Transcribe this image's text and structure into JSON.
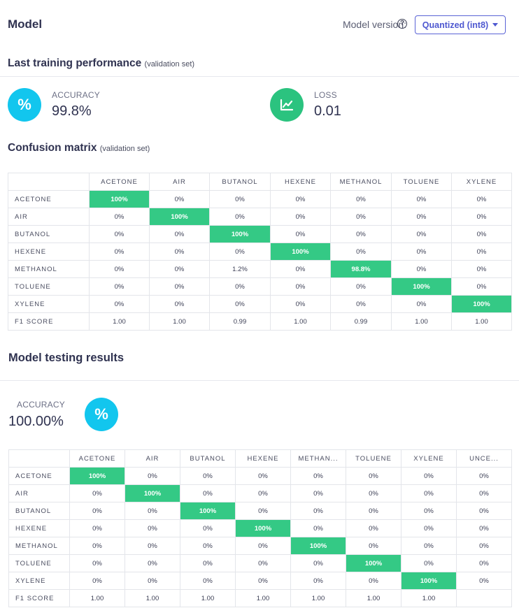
{
  "header": {
    "title": "Model",
    "version_label": "Model version:",
    "help_glyph": "?",
    "version_value": "Quantized (int8)"
  },
  "training": {
    "title": "Last training performance",
    "subtitle": "(validation set)",
    "accuracy": {
      "label": "ACCURACY",
      "value": "99.8%",
      "icon": "percent-icon",
      "icon_glyph": "%",
      "color": "#12c6ee"
    },
    "loss": {
      "label": "LOSS",
      "value": "0.01",
      "icon": "chart-line-icon",
      "color": "#2bc37f"
    },
    "confusion": {
      "title": "Confusion matrix",
      "subtitle": "(validation set)",
      "columns": [
        "ACETONE",
        "AIR",
        "BUTANOL",
        "HEXENE",
        "METHANOL",
        "TOLUENE",
        "XYLENE"
      ],
      "rows": [
        {
          "label": "ACETONE",
          "cells": [
            "100%",
            "0%",
            "0%",
            "0%",
            "0%",
            "0%",
            "0%"
          ]
        },
        {
          "label": "AIR",
          "cells": [
            "0%",
            "100%",
            "0%",
            "0%",
            "0%",
            "0%",
            "0%"
          ]
        },
        {
          "label": "BUTANOL",
          "cells": [
            "0%",
            "0%",
            "100%",
            "0%",
            "0%",
            "0%",
            "0%"
          ]
        },
        {
          "label": "HEXENE",
          "cells": [
            "0%",
            "0%",
            "0%",
            "100%",
            "0%",
            "0%",
            "0%"
          ]
        },
        {
          "label": "METHANOL",
          "cells": [
            "0%",
            "0%",
            "1.2%",
            "0%",
            "98.8%",
            "0%",
            "0%"
          ]
        },
        {
          "label": "TOLUENE",
          "cells": [
            "0%",
            "0%",
            "0%",
            "0%",
            "0%",
            "100%",
            "0%"
          ]
        },
        {
          "label": "XYLENE",
          "cells": [
            "0%",
            "0%",
            "0%",
            "0%",
            "0%",
            "0%",
            "100%"
          ]
        }
      ],
      "f1": {
        "label": "F1 SCORE",
        "cells": [
          "1.00",
          "1.00",
          "0.99",
          "1.00",
          "0.99",
          "1.00",
          "1.00"
        ]
      }
    }
  },
  "testing": {
    "title": "Model testing results",
    "accuracy": {
      "label": "ACCURACY",
      "value": "100.00%",
      "icon": "percent-icon",
      "icon_glyph": "%",
      "color": "#12c6ee"
    },
    "confusion": {
      "columns": [
        "ACETONE",
        "AIR",
        "BUTANOL",
        "HEXENE",
        "METHAN...",
        "TOLUENE",
        "XYLENE",
        "UNCE..."
      ],
      "rows": [
        {
          "label": "ACETONE",
          "cells": [
            "100%",
            "0%",
            "0%",
            "0%",
            "0%",
            "0%",
            "0%",
            "0%"
          ]
        },
        {
          "label": "AIR",
          "cells": [
            "0%",
            "100%",
            "0%",
            "0%",
            "0%",
            "0%",
            "0%",
            "0%"
          ]
        },
        {
          "label": "BUTANOL",
          "cells": [
            "0%",
            "0%",
            "100%",
            "0%",
            "0%",
            "0%",
            "0%",
            "0%"
          ]
        },
        {
          "label": "HEXENE",
          "cells": [
            "0%",
            "0%",
            "0%",
            "100%",
            "0%",
            "0%",
            "0%",
            "0%"
          ]
        },
        {
          "label": "METHANOL",
          "cells": [
            "0%",
            "0%",
            "0%",
            "0%",
            "100%",
            "0%",
            "0%",
            "0%"
          ]
        },
        {
          "label": "TOLUENE",
          "cells": [
            "0%",
            "0%",
            "0%",
            "0%",
            "0%",
            "100%",
            "0%",
            "0%"
          ]
        },
        {
          "label": "XYLENE",
          "cells": [
            "0%",
            "0%",
            "0%",
            "0%",
            "0%",
            "0%",
            "100%",
            "0%"
          ]
        }
      ],
      "f1": {
        "label": "F1 SCORE",
        "cells": [
          "1.00",
          "1.00",
          "1.00",
          "1.00",
          "1.00",
          "1.00",
          "1.00",
          ""
        ]
      }
    }
  },
  "colors": {
    "accent": "#4e58d0",
    "highlight": "#34c985",
    "cyan": "#12c6ee",
    "green": "#2bc37f"
  }
}
